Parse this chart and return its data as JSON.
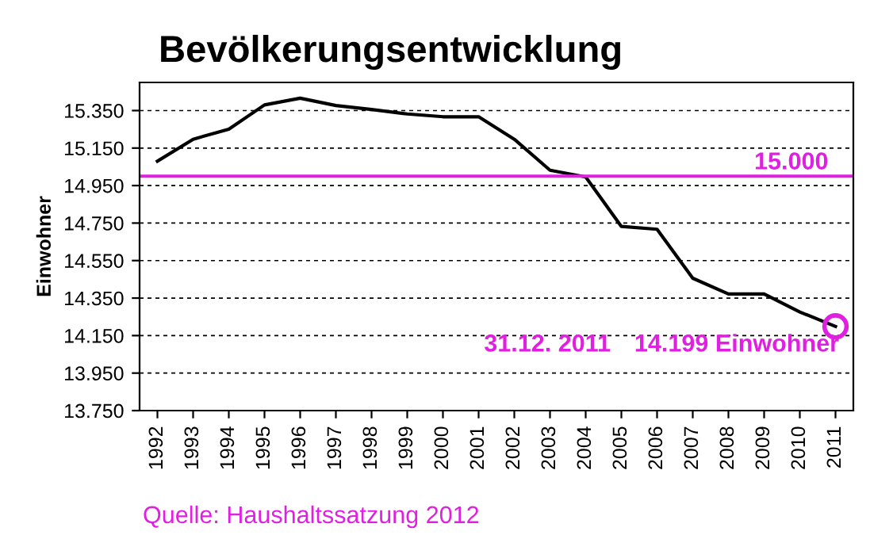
{
  "chart_data": {
    "type": "line",
    "title": "Bevölkerungsentwicklung",
    "ylabel": "Einwohner",
    "categories": [
      "1992",
      "1993",
      "1994",
      "1995",
      "1996",
      "1997",
      "1998",
      "1999",
      "2000",
      "2001",
      "2002",
      "2003",
      "2004",
      "2005",
      "2006",
      "2007",
      "2008",
      "2009",
      "2010",
      "2011"
    ],
    "series": [
      {
        "color": "#000000",
        "values": [
          15080,
          15197,
          15251,
          15380,
          15416,
          15377,
          15356,
          15332,
          15317,
          15317,
          15197,
          15032,
          14996,
          14732,
          14717,
          14456,
          14372,
          14372,
          14276,
          14199
        ]
      }
    ],
    "ylim": [
      13750,
      15500
    ],
    "yticks": [
      {
        "value": 13750,
        "label": "13.750"
      },
      {
        "value": 13950,
        "label": "13.950"
      },
      {
        "value": 14150,
        "label": "14.150"
      },
      {
        "value": 14350,
        "label": "14.350"
      },
      {
        "value": 14550,
        "label": "14.550"
      },
      {
        "value": 14750,
        "label": "14.750"
      },
      {
        "value": 14950,
        "label": "14.950"
      },
      {
        "value": 15150,
        "label": "15.150"
      },
      {
        "value": 15350,
        "label": "15.350"
      }
    ],
    "grid": "y",
    "marker": "none",
    "line_style": "solid",
    "ref_lines": [
      {
        "axis": "y",
        "value": 15000,
        "label": "15.000",
        "color": "#e020e0"
      }
    ],
    "annotations": [
      {
        "text": "14.199 Einwohner",
        "x": "2011",
        "y": 14199
      },
      "31.12. 2011",
      "Quelle: Haushaltssatzung 2012"
    ]
  }
}
